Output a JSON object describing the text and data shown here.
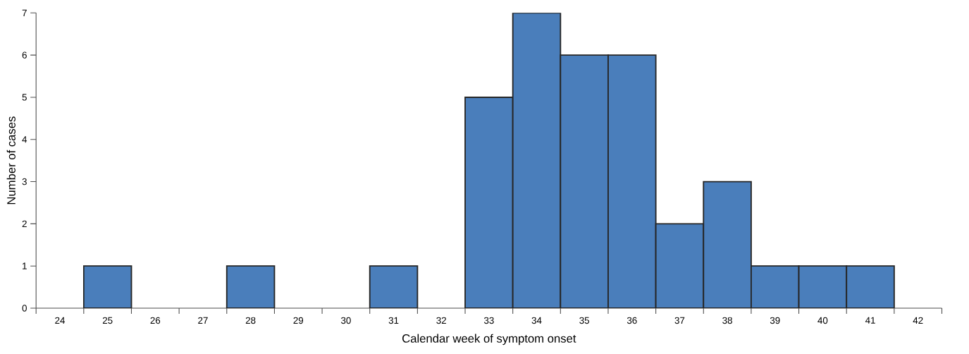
{
  "chart_data": {
    "type": "bar",
    "xlabel": "Calendar week of symptom onset",
    "ylabel": "Number of cases",
    "categories": [
      "24",
      "25",
      "26",
      "27",
      "28",
      "29",
      "30",
      "31",
      "32",
      "33",
      "34",
      "35",
      "36",
      "37",
      "38",
      "39",
      "40",
      "41",
      "42"
    ],
    "values": [
      0,
      1,
      0,
      0,
      1,
      0,
      0,
      1,
      0,
      5,
      7,
      6,
      6,
      2,
      3,
      1,
      1,
      1,
      0
    ],
    "color": "#4a7ebb",
    "ylim": [
      0,
      7
    ],
    "yticks": [
      0,
      1,
      2,
      3,
      4,
      5,
      6,
      7
    ]
  }
}
